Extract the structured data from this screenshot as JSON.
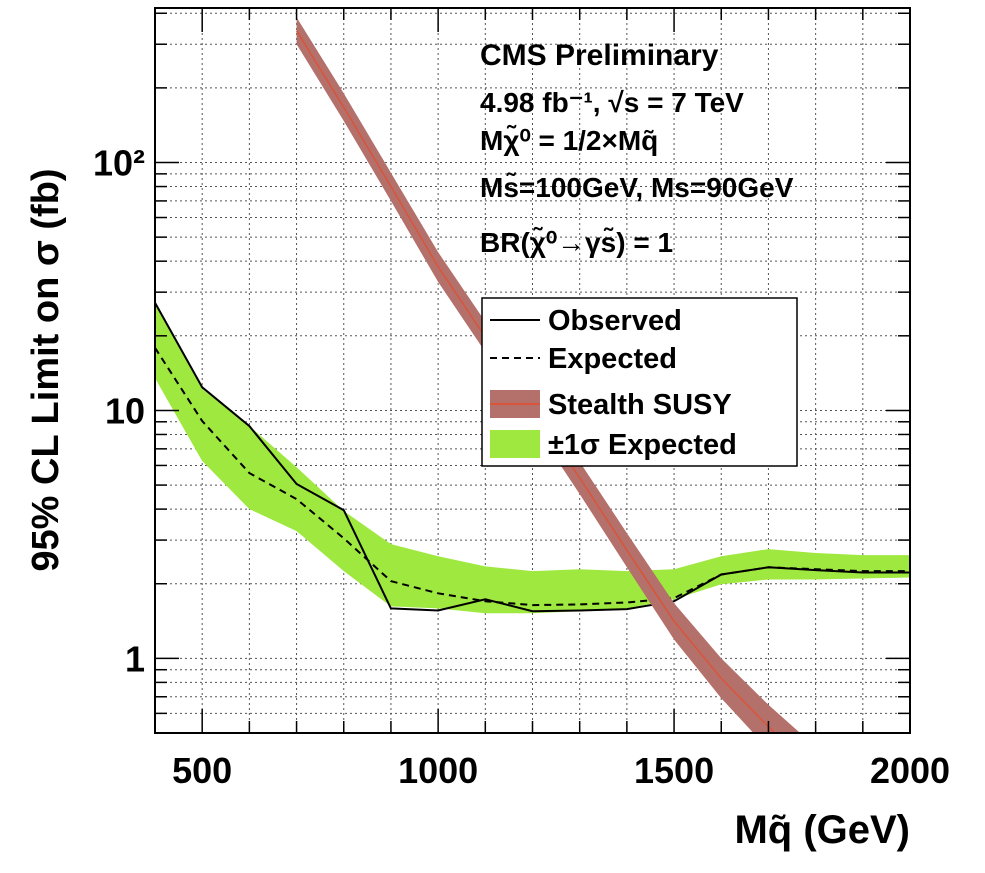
{
  "chart_data": {
    "type": "line",
    "log_y": true,
    "grid": true,
    "xlabel": "Mq̃ (GeV)",
    "ylabel": "95% CL Limit on σ (fb)",
    "annotations": [
      "CMS Preliminary",
      "4.98 fb⁻¹, √s = 7 TeV",
      "Mχ̃⁰ = 1/2×Mq̃",
      "Ms̃=100GeV, Ms=90GeV",
      "BR(χ̃⁰→γs̃) = 1"
    ],
    "x": [
      400,
      500,
      600,
      700,
      800,
      900,
      1000,
      1100,
      1200,
      1300,
      1400,
      1500,
      1600,
      1700,
      1800,
      1900,
      2000
    ],
    "xlim": [
      400,
      2000
    ],
    "xticks": [
      500,
      1000,
      1500,
      2000
    ],
    "xminorticks": [
      400,
      600,
      700,
      800,
      900,
      1100,
      1200,
      1300,
      1400,
      1600,
      1700,
      1800,
      1900
    ],
    "ylim": [
      0.5,
      420
    ],
    "yticks": [
      1,
      10,
      {
        "value": 100,
        "label": "10²"
      }
    ],
    "yminorticks": [
      0.6,
      0.7,
      0.8,
      0.9,
      2,
      3,
      4,
      5,
      6,
      7,
      8,
      9,
      20,
      30,
      40,
      50,
      60,
      70,
      80,
      90,
      200,
      300,
      400
    ],
    "series": [
      {
        "name": "Observed",
        "kind": "line",
        "dashed": false,
        "color": "#000000",
        "values": [
          27.2,
          12.4,
          8.65,
          5.05,
          3.96,
          1.59,
          1.56,
          1.73,
          1.55,
          1.56,
          1.58,
          1.7,
          2.18,
          2.33,
          2.27,
          2.22,
          2.22
        ]
      },
      {
        "name": "Expected",
        "kind": "line",
        "dashed": true,
        "color": "#000000",
        "values": [
          17.9,
          9.07,
          5.59,
          4.39,
          3.05,
          2.05,
          1.83,
          1.7,
          1.64,
          1.65,
          1.68,
          1.75,
          2.18,
          2.33,
          2.29,
          2.25,
          2.25
        ]
      },
      {
        "name": "Stealth SUSY",
        "kind": "band-line",
        "color": "#d9553a",
        "band_color": "#b4706a",
        "x": [
          700,
          800,
          900,
          1000,
          1100,
          1200,
          1300,
          1400,
          1500,
          1600,
          1700,
          1800
        ],
        "values": [
          340,
          167,
          80,
          38,
          19.8,
          10.3,
          5.34,
          2.73,
          1.41,
          0.83,
          0.53,
          0.35
        ],
        "lower": [
          300,
          147,
          70,
          33,
          17.2,
          8.9,
          4.6,
          2.33,
          1.19,
          0.69,
          0.43,
          0.28
        ],
        "upper": [
          385,
          190,
          91,
          43.5,
          22.8,
          11.9,
          6.2,
          3.2,
          1.67,
          1.0,
          0.65,
          0.44
        ]
      },
      {
        "name": "±1σ Expected",
        "kind": "band",
        "color": "#9ee83f",
        "lower": [
          13.5,
          6.25,
          4.0,
          3.26,
          2.25,
          1.62,
          1.59,
          1.52,
          1.52,
          1.55,
          1.59,
          1.73,
          1.99,
          2.08,
          2.08,
          2.1,
          2.12
        ],
        "upper": [
          27,
          12.2,
          8.65,
          5.9,
          3.93,
          2.89,
          2.58,
          2.35,
          2.25,
          2.29,
          2.25,
          2.29,
          2.58,
          2.76,
          2.66,
          2.61,
          2.61
        ]
      }
    ]
  }
}
